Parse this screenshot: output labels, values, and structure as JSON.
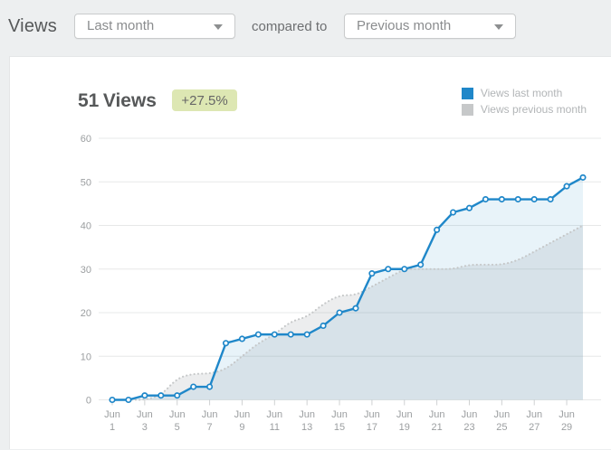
{
  "header": {
    "title": "Views",
    "range_dropdown": {
      "value": "Last month"
    },
    "compared_label": "compared to",
    "compare_dropdown": {
      "value": "Previous month"
    }
  },
  "summary": {
    "count": "51",
    "unit": "Views",
    "delta_badge": "+27.5%"
  },
  "chart_data": {
    "type": "line",
    "title": "Views: last month vs previous month (cumulative)",
    "x_month": "Jun",
    "x": [
      1,
      2,
      3,
      4,
      5,
      6,
      7,
      8,
      9,
      10,
      11,
      12,
      13,
      14,
      15,
      16,
      17,
      18,
      19,
      20,
      21,
      22,
      23,
      24,
      25,
      26,
      27,
      28,
      29,
      30
    ],
    "x_labeled_days": [
      1,
      3,
      5,
      7,
      9,
      11,
      13,
      15,
      17,
      19,
      21,
      23,
      25,
      27,
      29
    ],
    "series": [
      {
        "name": "Views last month",
        "color": "#1f87c9",
        "fill": "rgba(30,134,198,0.10)",
        "style": "solid",
        "markers": true,
        "values": [
          0,
          0,
          1,
          1,
          1,
          3,
          3,
          13,
          14,
          15,
          15,
          15,
          15,
          17,
          20,
          21,
          29,
          30,
          30,
          31,
          39,
          43,
          44,
          46,
          46,
          46,
          46,
          46,
          49,
          51
        ]
      },
      {
        "name": "Views previous month",
        "color": "#c6c8c9",
        "fill": "rgba(170,175,178,0.22)",
        "style": "dotted",
        "markers": false,
        "values": [
          0,
          0,
          0,
          1,
          5,
          6,
          6,
          7,
          10,
          13,
          15,
          18,
          19,
          22,
          24,
          24,
          26,
          28,
          30,
          30,
          30,
          30,
          31,
          31,
          31,
          32,
          34,
          36,
          38,
          40
        ]
      }
    ],
    "ylim": [
      0,
      60
    ],
    "yticks": [
      0,
      10,
      20,
      30,
      40,
      50,
      60
    ],
    "grid": true,
    "legend_position": "top-right"
  },
  "colors": {
    "page_bg": "#edeff0",
    "card_bg": "#ffffff",
    "card_border": "#e4e6e7",
    "grid_line": "#e7e8e8",
    "tick_line": "#cfd1d2",
    "axis_text": "#9b9ea0",
    "title_text": "#565859",
    "muted_text": "#8a8c8e",
    "legend_text": "#b2b5b7",
    "badge_bg": "#dde7b3",
    "badge_text": "#666666"
  }
}
